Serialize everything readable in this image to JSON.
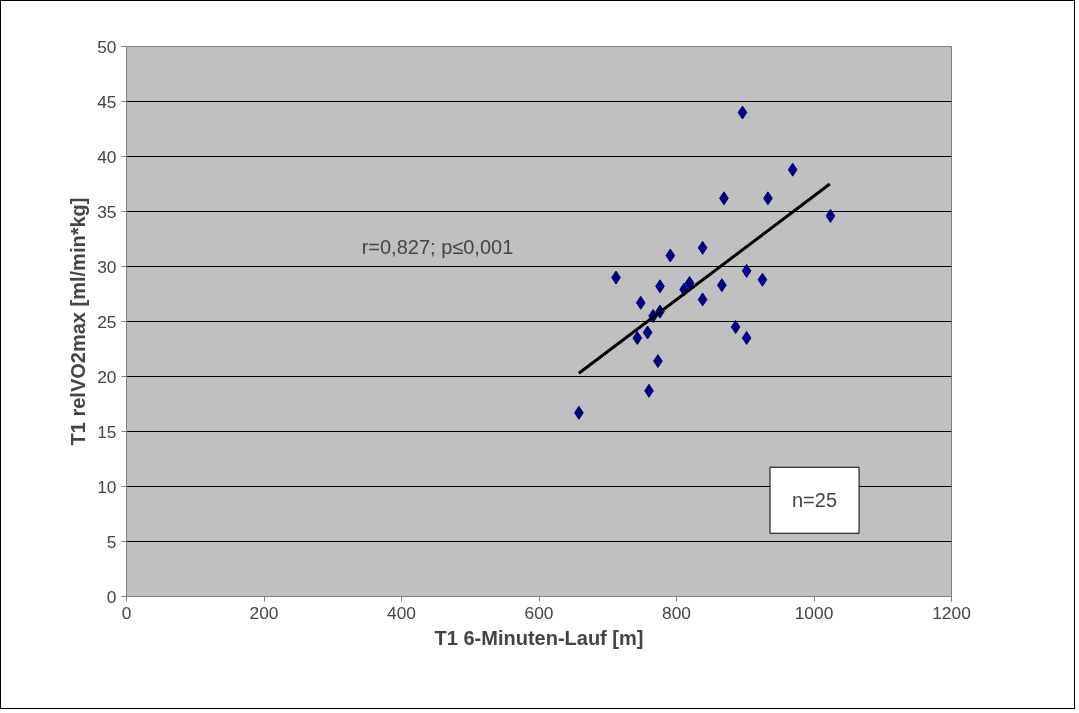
{
  "chart_data": {
    "type": "scatter",
    "xlabel": "T1 6-Minuten-Lauf [m]",
    "ylabel": "T1 relVO2max [ml/min*kg]",
    "xlim": [
      0,
      1200
    ],
    "xticks": [
      0,
      200,
      400,
      600,
      800,
      1000,
      1200
    ],
    "ylim": [
      0,
      50
    ],
    "yticks": [
      0,
      5,
      10,
      15,
      20,
      25,
      30,
      35,
      40,
      45,
      50
    ],
    "grid": "y",
    "marker": "diamond",
    "annotations": [
      "r=0,827; p≤0,001",
      "n=25"
    ],
    "series": [
      {
        "color": "#000080",
        "x": [
          658,
          712,
          748,
          743,
          758,
          760,
          773,
          776,
          766,
          776,
          791,
          811,
          819,
          838,
          838,
          866,
          869,
          886,
          902,
          902,
          925,
          933,
          969,
          1024,
          896
        ],
        "values": [
          16.7,
          29.0,
          26.7,
          23.5,
          24.0,
          18.7,
          21.4,
          28.2,
          25.5,
          25.9,
          31.0,
          27.9,
          28.5,
          31.7,
          27.0,
          28.3,
          36.2,
          24.5,
          29.6,
          23.5,
          28.8,
          36.2,
          38.8,
          34.6,
          44.0
        ]
      },
      {
        "type": "line",
        "marker": "none",
        "color": "#000000",
        "x": [
          658,
          1023
        ],
        "values": [
          20.3,
          37.5
        ]
      }
    ]
  }
}
